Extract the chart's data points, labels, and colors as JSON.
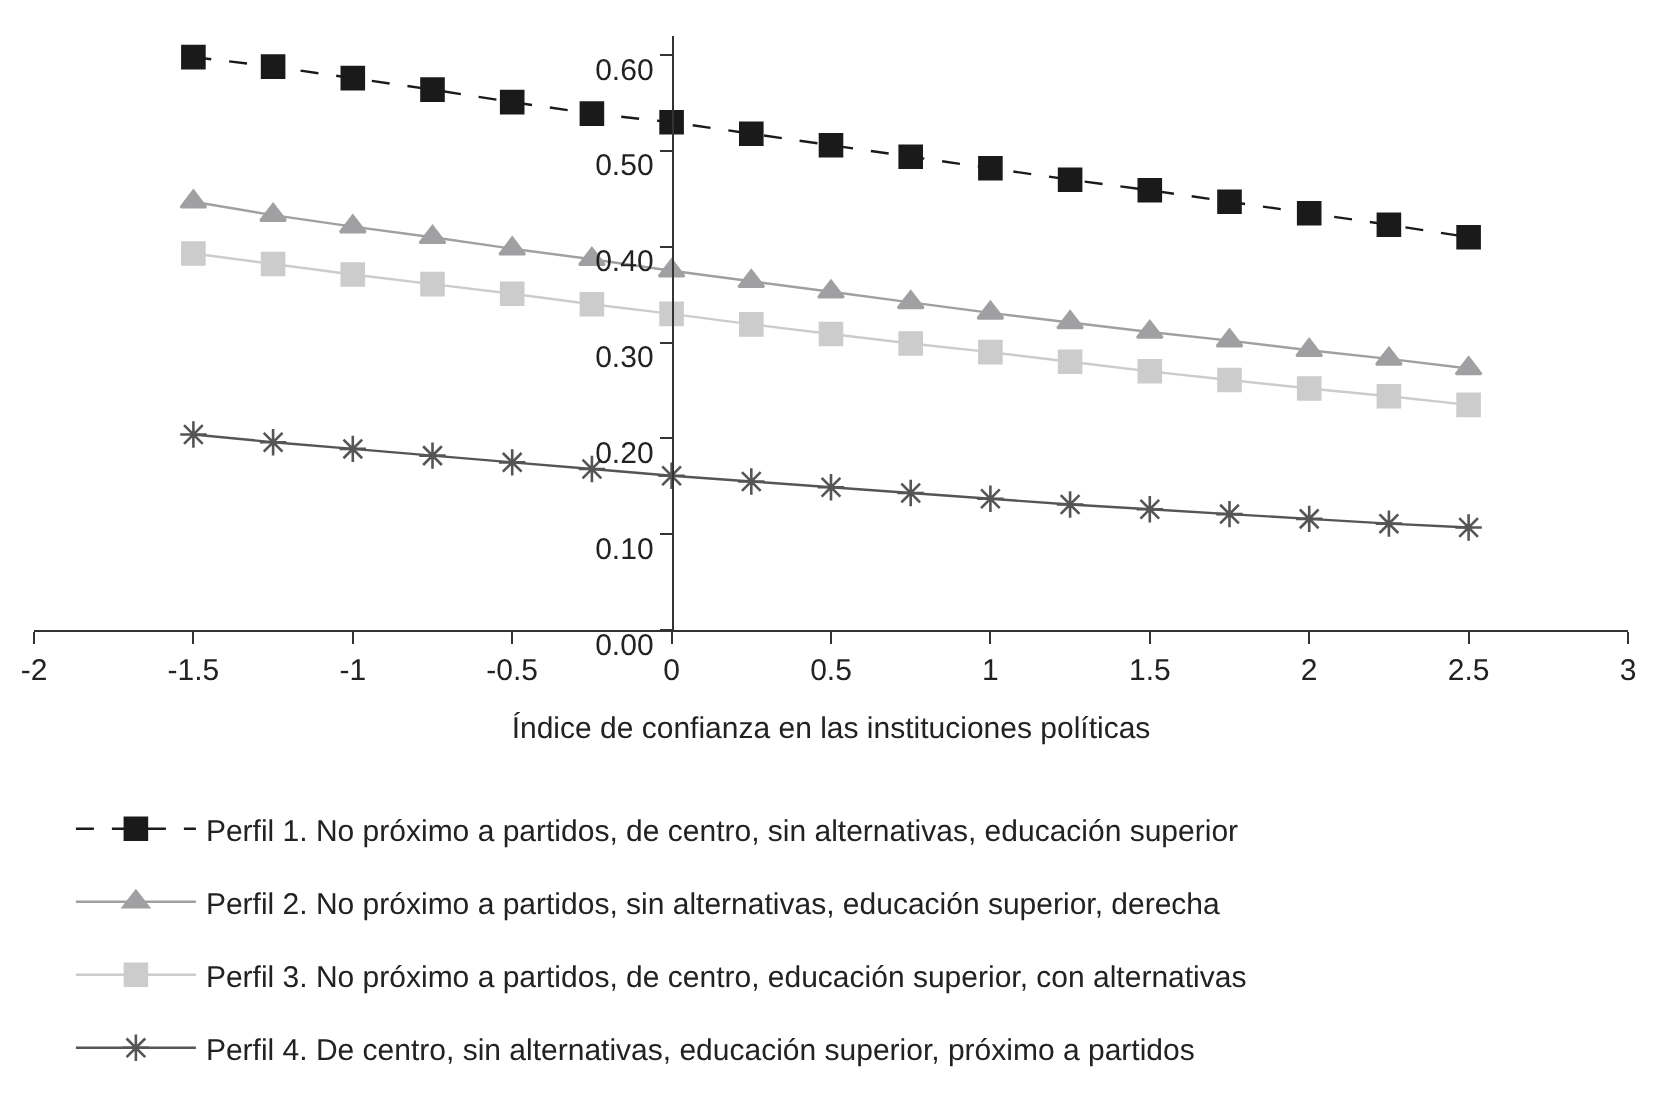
{
  "chart_data": {
    "type": "line",
    "xlabel": "Índice de confianza en las instituciones políticas",
    "x": [
      -1.5,
      -1.25,
      -1,
      -0.75,
      -0.5,
      -0.25,
      0,
      0.25,
      0.5,
      0.75,
      1,
      1.25,
      1.5,
      1.75,
      2,
      2.25,
      2.5
    ],
    "series": [
      {
        "name": "Perfil 1. No próximo a partidos, de centro, sin alternativas, educación superior",
        "color": "#1a1a1a",
        "marker": "square",
        "line_style": "dashed",
        "values": [
          0.598,
          0.588,
          0.576,
          0.564,
          0.551,
          0.539,
          0.53,
          0.518,
          0.506,
          0.494,
          0.482,
          0.47,
          0.459,
          0.447,
          0.435,
          0.423,
          0.41
        ]
      },
      {
        "name": "Perfil 2. No próximo a partidos, sin alternativas, educación superior, derecha",
        "color": "#a0a0a2",
        "marker": "triangle",
        "line_style": "solid",
        "values": [
          0.447,
          0.433,
          0.421,
          0.41,
          0.398,
          0.387,
          0.375,
          0.364,
          0.353,
          0.342,
          0.331,
          0.321,
          0.311,
          0.302,
          0.292,
          0.283,
          0.273
        ]
      },
      {
        "name": "Perfil 3. No próximo a partidos, de centro, educación superior, con alternativas",
        "color": "#cccccc",
        "marker": "square",
        "line_style": "solid",
        "values": [
          0.393,
          0.382,
          0.371,
          0.361,
          0.351,
          0.34,
          0.33,
          0.319,
          0.309,
          0.299,
          0.29,
          0.28,
          0.27,
          0.261,
          0.252,
          0.244,
          0.235
        ]
      },
      {
        "name": "Perfil 4. De centro, sin alternativas, educación superior, próximo a partidos",
        "color": "#555555",
        "marker": "cross",
        "line_style": "solid",
        "values": [
          0.204,
          0.196,
          0.189,
          0.182,
          0.175,
          0.168,
          0.161,
          0.155,
          0.149,
          0.143,
          0.137,
          0.131,
          0.126,
          0.121,
          0.116,
          0.111,
          0.107
        ]
      }
    ],
    "xlim": [
      -2,
      3
    ],
    "xticks": [
      -2,
      -1.5,
      -1,
      -0.5,
      0,
      0.5,
      1,
      1.5,
      2,
      2.5,
      3
    ],
    "ylim": [
      0,
      0.62
    ],
    "yticks": [
      {
        "value": 0,
        "label": "0.00"
      },
      {
        "value": 0.1,
        "label": "0.10"
      },
      {
        "value": 0.2,
        "label": "0.20"
      },
      {
        "value": 0.3,
        "label": "0.30"
      },
      {
        "value": 0.4,
        "label": "0.40"
      },
      {
        "value": 0.5,
        "label": "0.50"
      },
      {
        "value": 0.6,
        "label": "0.60"
      }
    ],
    "legend": "bottom"
  }
}
